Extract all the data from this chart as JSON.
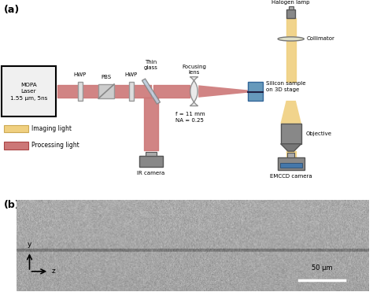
{
  "fig_width": 4.74,
  "fig_height": 3.85,
  "dpi": 100,
  "panel_a_label": "(a)",
  "panel_b_label": "(b)",
  "bg_color": "#ffffff",
  "processing_color": "#cc7777",
  "imaging_color": "#f0d080",
  "laser_box_text": "MOPA\nLaser\n1.55 μm, 5ns",
  "labels": {
    "hwp1": "HWP",
    "pbs": "PBS",
    "hwp2": "HWP",
    "thin_glass": "Thin\nglass",
    "focusing_lens": "Focusing\nlens",
    "halogen": "Halogen lamp",
    "collimator": "Collimator",
    "silicon": "Silicon sample\non 3D stage",
    "objective": "Objective",
    "ir_camera": "IR camera",
    "emccd": "EMCCD camera",
    "f_na": "f = 11 mm\nNA = 0.25"
  },
  "legend": {
    "imaging": "Imaging light",
    "processing": "Processing light"
  },
  "scalebar_text": "50 μm",
  "axis_label_y": "y",
  "axis_label_z": "z"
}
